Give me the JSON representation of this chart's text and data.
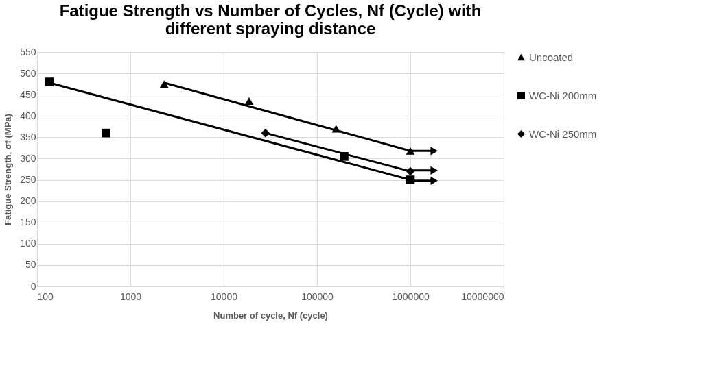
{
  "chart_data": {
    "type": "scatter",
    "title": [
      "Fatigue Strength vs Number of Cycles, Nf (Cycle) with",
      "different spraying distance"
    ],
    "xlabel": "Number of cycle, Nf (cycle)",
    "ylabel": "Fatigue Strength, σf (MPa)",
    "log": "x",
    "xlim": [
      100,
      10000000
    ],
    "xticks": [
      100,
      1000,
      10000,
      100000,
      1000000,
      10000000
    ],
    "ylim": [
      0,
      550
    ],
    "yticks": [
      0,
      50,
      100,
      150,
      200,
      250,
      300,
      350,
      400,
      450,
      500,
      550
    ],
    "grid": true,
    "legend": "right",
    "series": [
      {
        "name": "Uncoated",
        "marker": "triangle",
        "color": "#000000",
        "x": [
          2300,
          18700,
          160000,
          1000000
        ],
        "values": [
          475,
          435,
          370,
          318
        ]
      },
      {
        "name": "WC-Ni 200mm",
        "marker": "square",
        "color": "#000000",
        "x": [
          135,
          550,
          195000,
          1000000
        ],
        "values": [
          480,
          360,
          305,
          250
        ]
      },
      {
        "name": "WC-Ni 250mm",
        "marker": "diamond",
        "color": "#000000",
        "x": [
          28000,
          1000000
        ],
        "values": [
          360,
          270
        ]
      },
      {
        "type": "line",
        "marker": "none",
        "color": "#000000",
        "x": [
          2300,
          1000000
        ],
        "values": [
          478,
          318
        ]
      },
      {
        "type": "line",
        "marker": "none",
        "color": "#000000",
        "x": [
          135,
          1000000
        ],
        "values": [
          478,
          250
        ]
      },
      {
        "type": "line",
        "marker": "none",
        "color": "#000000",
        "x": [
          28000,
          1000000
        ],
        "values": [
          360,
          270
        ]
      },
      {
        "type": "line",
        "marker": "triangle",
        "color": "#000000",
        "x": [
          1000000,
          1800000
        ],
        "values": [
          318,
          318
        ]
      },
      {
        "type": "line",
        "marker": "triangle",
        "color": "#000000",
        "x": [
          1000000,
          1800000
        ],
        "values": [
          272,
          272
        ]
      },
      {
        "type": "line",
        "marker": "triangle",
        "color": "#000000",
        "x": [
          1000000,
          1800000
        ],
        "values": [
          248,
          248
        ]
      }
    ]
  }
}
